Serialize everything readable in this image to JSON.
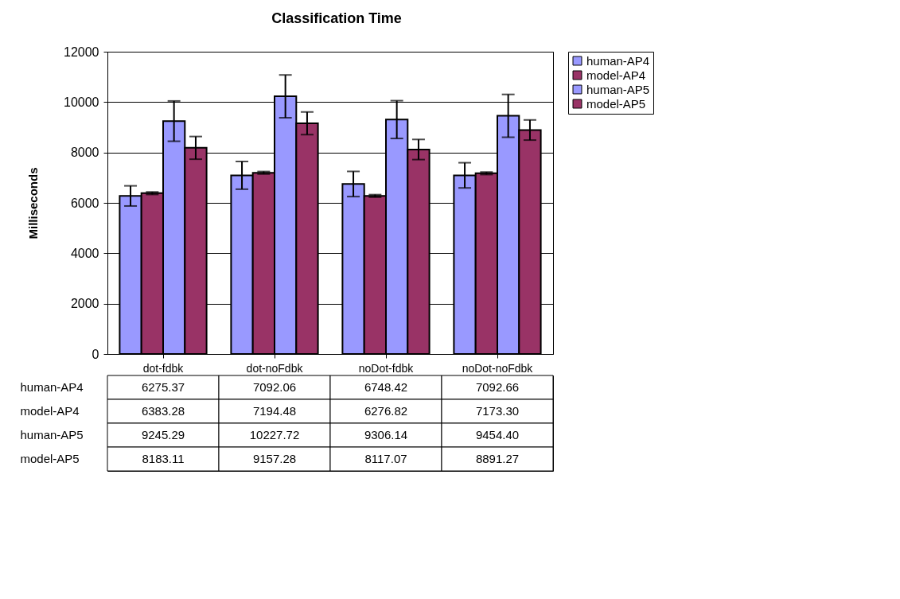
{
  "chart_data": {
    "type": "bar",
    "title": "Classification  Time",
    "ylabel": "Milliseconds",
    "categories": [
      "dot-fdbk",
      "dot-noFdbk",
      "noDot-fdbk",
      "noDot-noFdbk"
    ],
    "ylim": [
      0,
      12000
    ],
    "yticks": [
      0,
      2000,
      4000,
      6000,
      8000,
      10000,
      12000
    ],
    "grid": "y",
    "legend": "right",
    "series": [
      {
        "name": "human-AP4",
        "color": "#9999ff",
        "values": [
          6275.37,
          7092.06,
          6748.42,
          7092.66
        ],
        "value_labels": [
          "6275.37",
          "7092.06",
          "6748.42",
          "7092.66"
        ],
        "errors": [
          400,
          550,
          500,
          500
        ]
      },
      {
        "name": "model-AP4",
        "color": "#993366",
        "values": [
          6383.28,
          7194.48,
          6276.82,
          7173.3
        ],
        "value_labels": [
          "6383.28",
          "7194.48",
          "6276.82",
          "7173.30"
        ],
        "errors": [
          50,
          50,
          50,
          50
        ]
      },
      {
        "name": "human-AP5",
        "color": "#9999ff",
        "values": [
          9245.29,
          10227.72,
          9306.14,
          9454.4
        ],
        "value_labels": [
          "9245.29",
          "10227.72",
          "9306.14",
          "9454.40"
        ],
        "errors": [
          800,
          850,
          750,
          850
        ]
      },
      {
        "name": "model-AP5",
        "color": "#993366",
        "values": [
          8183.11,
          9157.28,
          8117.07,
          8891.27
        ],
        "value_labels": [
          "8183.11",
          "9157.28",
          "8117.07",
          "8891.27"
        ],
        "errors": [
          450,
          450,
          400,
          400
        ]
      }
    ]
  }
}
